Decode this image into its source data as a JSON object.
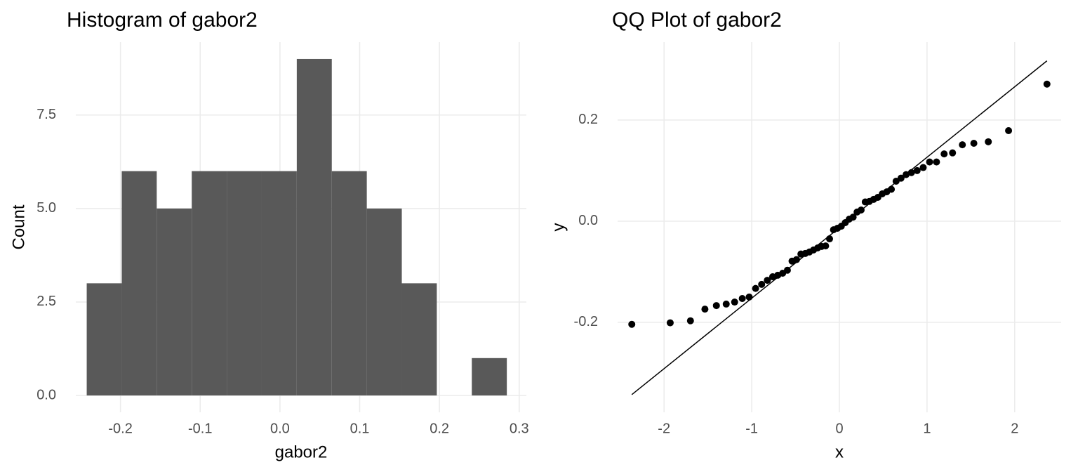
{
  "chart_data": [
    {
      "type": "histogram",
      "title": "Histogram of gabor2",
      "x_label": "gabor2",
      "y_label": "Count",
      "bins": [
        -0.2423,
        -0.1984,
        -0.1545,
        -0.1106,
        -0.0667,
        -0.0228,
        0.0211,
        0.065,
        0.1089,
        0.1528,
        0.1967,
        0.2406,
        0.2845
      ],
      "values": [
        3,
        6,
        5,
        6,
        6,
        6,
        9,
        6,
        5,
        3,
        0,
        1
      ],
      "color": "#595959",
      "xlim": [
        -0.256,
        0.309
      ],
      "xticks": [
        -0.2,
        -0.1,
        {
          "value": 0,
          "label": "0.0"
        },
        0.1,
        0.2,
        0.3
      ],
      "ylim": [
        -0.45,
        9.45
      ],
      "yticks": [
        {
          "value": 0,
          "label": "0.0"
        },
        2.5,
        {
          "value": 5,
          "label": "5.0"
        },
        7.5
      ],
      "grid": true
    },
    {
      "type": "scatter",
      "title": "QQ Plot of gabor2",
      "x_label": "x",
      "y_label": "y",
      "color": "#000000",
      "x": [
        -2.368,
        -1.93,
        -1.699,
        -1.534,
        -1.403,
        -1.291,
        -1.195,
        -1.108,
        -1.029,
        -0.956,
        -0.887,
        -0.822,
        -0.761,
        -0.703,
        -0.647,
        -0.593,
        -0.54,
        -0.489,
        -0.439,
        -0.39,
        -0.342,
        -0.295,
        -0.248,
        -0.202,
        -0.157,
        -0.112,
        -0.067,
        -0.022,
        0.022,
        0.067,
        0.112,
        0.157,
        0.202,
        0.248,
        0.295,
        0.342,
        0.39,
        0.439,
        0.489,
        0.54,
        0.593,
        0.647,
        0.703,
        0.761,
        0.822,
        0.887,
        0.956,
        1.029,
        1.108,
        1.195,
        1.291,
        1.403,
        1.534,
        1.699,
        1.93,
        2.368
      ],
      "y": [
        -0.204,
        -0.201,
        -0.197,
        -0.174,
        -0.167,
        -0.164,
        -0.16,
        -0.153,
        -0.15,
        -0.133,
        -0.125,
        -0.117,
        -0.11,
        -0.107,
        -0.103,
        -0.097,
        -0.079,
        -0.076,
        -0.065,
        -0.064,
        -0.061,
        -0.057,
        -0.053,
        -0.05,
        -0.049,
        -0.035,
        -0.017,
        -0.014,
        -0.01,
        -0.003,
        0.004,
        0.008,
        0.018,
        0.022,
        0.038,
        0.039,
        0.043,
        0.047,
        0.054,
        0.058,
        0.063,
        0.079,
        0.085,
        0.092,
        0.096,
        0.1,
        0.106,
        0.117,
        0.117,
        0.133,
        0.135,
        0.151,
        0.154,
        0.157,
        0.179,
        0.271
      ],
      "qq_line": {
        "x": [
          -2.368,
          2.368
        ],
        "y": [
          -0.343,
          0.317
        ]
      },
      "xlim": [
        -2.53,
        2.53
      ],
      "xticks": [
        -2,
        -1,
        0,
        1,
        2
      ],
      "ylim": [
        -0.378,
        0.354
      ],
      "yticks": [
        -0.2,
        {
          "value": 0,
          "label": "0.0"
        },
        0.2
      ],
      "grid": true
    }
  ]
}
